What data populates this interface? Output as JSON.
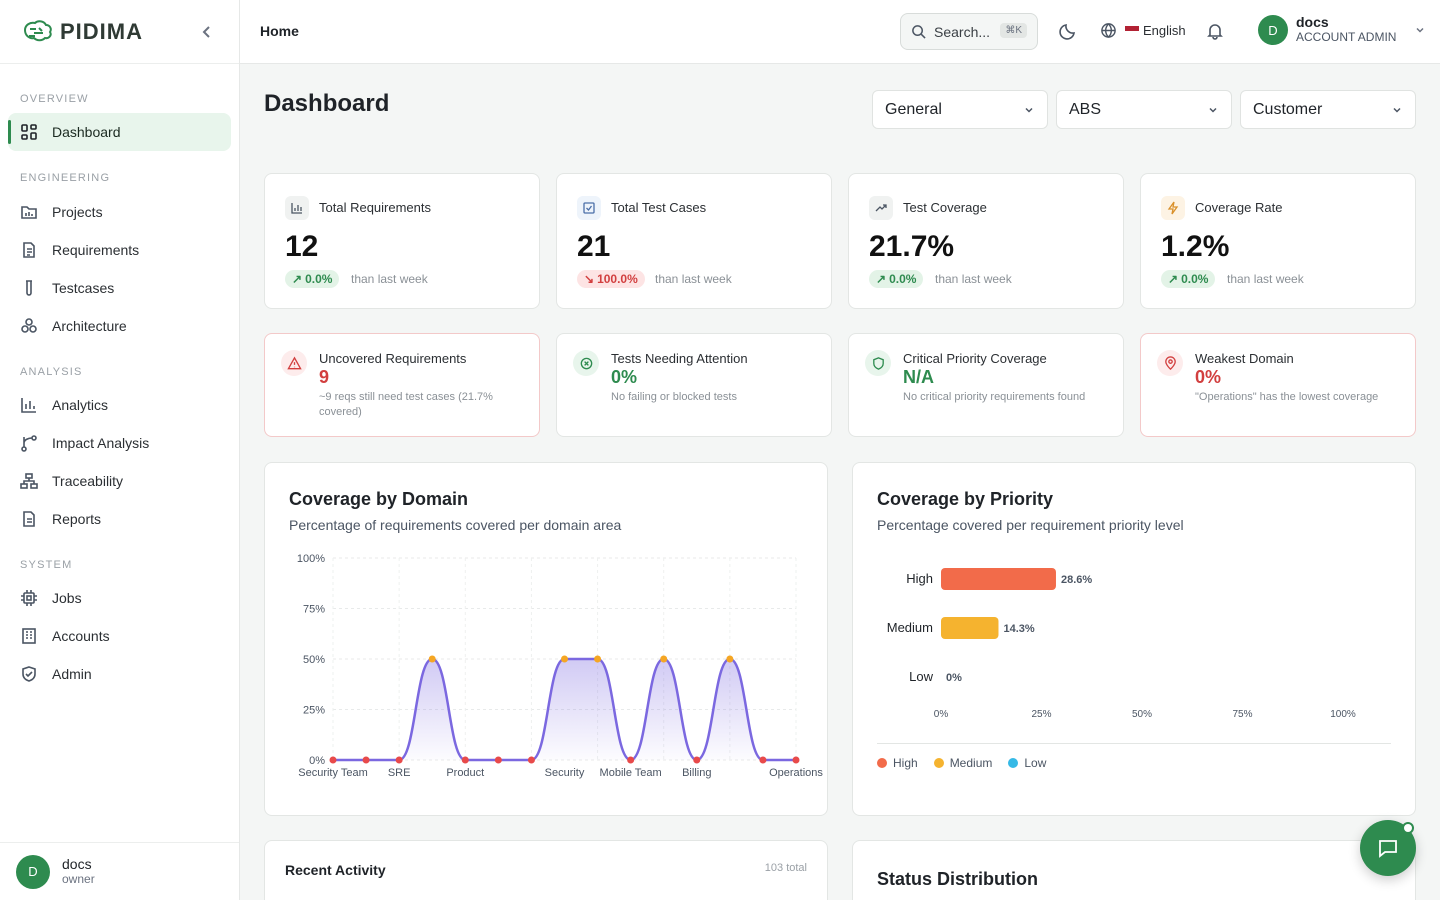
{
  "brand": {
    "name": "PIDIMA"
  },
  "sidebar": {
    "sections": {
      "overview": "OVERVIEW",
      "engineering": "ENGINEERING",
      "analysis": "ANALYSIS",
      "system": "SYSTEM"
    },
    "items": [
      {
        "label": "Dashboard",
        "icon": "grid-icon"
      },
      {
        "label": "Projects",
        "icon": "folder-chart-icon"
      },
      {
        "label": "Requirements",
        "icon": "document-icon"
      },
      {
        "label": "Testcases",
        "icon": "test-tube-icon"
      },
      {
        "label": "Architecture",
        "icon": "components-icon"
      },
      {
        "label": "Analytics",
        "icon": "bar-chart-icon"
      },
      {
        "label": "Impact Analysis",
        "icon": "branch-icon"
      },
      {
        "label": "Traceability",
        "icon": "network-icon"
      },
      {
        "label": "Reports",
        "icon": "report-icon"
      },
      {
        "label": "Jobs",
        "icon": "cpu-icon"
      },
      {
        "label": "Accounts",
        "icon": "building-icon"
      },
      {
        "label": "Admin",
        "icon": "shield-check-icon"
      }
    ],
    "footer": {
      "avatar": "D",
      "name": "docs",
      "role": "owner"
    }
  },
  "topbar": {
    "breadcrumb": "Home",
    "search": {
      "label": "Search...",
      "shortcut": "⌘K"
    },
    "language": "English",
    "user": {
      "avatar": "D",
      "name": "docs",
      "role": "ACCOUNT ADMIN"
    }
  },
  "page": {
    "title": "Dashboard",
    "filters": [
      {
        "value": "General"
      },
      {
        "value": "ABS"
      },
      {
        "value": "Customer"
      }
    ]
  },
  "stats": [
    {
      "label": "Total Requirements",
      "value": "12",
      "change": "0.0%",
      "trend": "up",
      "sub": "than last week"
    },
    {
      "label": "Total Test Cases",
      "value": "21",
      "change": "100.0%",
      "trend": "down",
      "sub": "than last week"
    },
    {
      "label": "Test Coverage",
      "value": "21.7%",
      "change": "0.0%",
      "trend": "up",
      "sub": "than last week"
    },
    {
      "label": "Coverage Rate",
      "value": "1.2%",
      "change": "0.0%",
      "trend": "up",
      "sub": "than last week"
    }
  ],
  "insights": [
    {
      "label": "Uncovered Requirements",
      "value": "9",
      "desc": "~9 reqs still need test cases (21.7% covered)",
      "color": "#d23f3f"
    },
    {
      "label": "Tests Needing Attention",
      "value": "0%",
      "desc": "No failing or blocked tests",
      "color": "#2e8b4f"
    },
    {
      "label": "Critical Priority Coverage",
      "value": "N/A",
      "desc": "No critical priority requirements found",
      "color": "#2e8b4f"
    },
    {
      "label": "Weakest Domain",
      "value": "0%",
      "desc": "\"Operations\" has the lowest coverage",
      "color": "#d23f3f"
    }
  ],
  "domain_chart": {
    "title": "Coverage by Domain",
    "subtitle": "Percentage of requirements covered per domain area"
  },
  "priority_chart": {
    "title": "Coverage by Priority",
    "subtitle": "Percentage covered per requirement priority level",
    "legend": [
      {
        "name": "High",
        "color": "#f26b4a"
      },
      {
        "name": "Medium",
        "color": "#f5b32f"
      },
      {
        "name": "Low",
        "color": "#36b9e6"
      }
    ]
  },
  "recent_activity": {
    "title": "Recent Activity",
    "total": "103 total"
  },
  "status_distribution": {
    "title": "Status Distribution"
  },
  "chart_data": [
    {
      "type": "area",
      "title": "Coverage by Domain",
      "x_tick_labels": [
        "Security Team",
        "SRE",
        "Product",
        "Security",
        "Mobile Team",
        "Billing",
        "Operations"
      ],
      "values": [
        0,
        0,
        0,
        50,
        0,
        0,
        0,
        50,
        50,
        0,
        50,
        0,
        50,
        0,
        0
      ],
      "yticks": [
        "0%",
        "25%",
        "50%",
        "75%",
        "100%"
      ],
      "ylim": [
        0,
        100
      ],
      "line_color": "#7b68e0",
      "grid": true
    },
    {
      "type": "bar",
      "orientation": "horizontal",
      "title": "Coverage by Priority",
      "categories": [
        "High",
        "Medium",
        "Low"
      ],
      "values": [
        28.6,
        14.3,
        0
      ],
      "labels": [
        "28.6%",
        "14.3%",
        "0%"
      ],
      "xticks": [
        "0%",
        "25%",
        "50%",
        "75%",
        "100%"
      ],
      "xlim": [
        0,
        100
      ],
      "colors": [
        "#f26b4a",
        "#f5b32f",
        "#36b9e6"
      ]
    }
  ]
}
